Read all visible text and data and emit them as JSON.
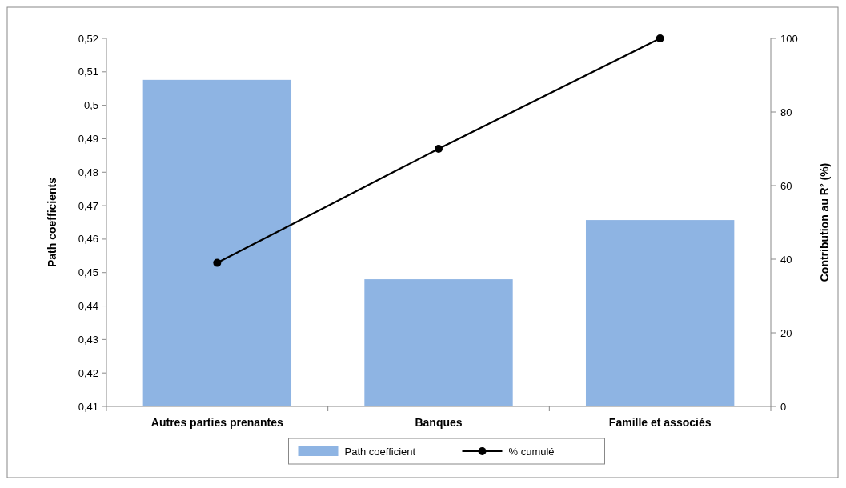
{
  "chart_data": {
    "type": "bar",
    "categories": [
      "Autres parties prenantes",
      "Banques",
      "Famille et associés"
    ],
    "ylabel": "Path coefficients",
    "y2label": "Contribution au R² (%)",
    "ylim": [
      0.41,
      0.52
    ],
    "yticks": [
      {
        "value": 0.41,
        "label": "0,41"
      },
      {
        "value": 0.42,
        "label": "0,42"
      },
      {
        "value": 0.43,
        "label": "0,43"
      },
      {
        "value": 0.44,
        "label": "0,44"
      },
      {
        "value": 0.45,
        "label": "0,45"
      },
      {
        "value": 0.46,
        "label": "0,46"
      },
      {
        "value": 0.47,
        "label": "0,47"
      },
      {
        "value": 0.48,
        "label": "0,48"
      },
      {
        "value": 0.49,
        "label": "0,49"
      },
      {
        "value": 0.5,
        "label": "0,5"
      },
      {
        "value": 0.51,
        "label": "0,51"
      },
      {
        "value": 0.52,
        "label": "0,52"
      }
    ],
    "y2lim": [
      0,
      100
    ],
    "y2ticks": [
      0,
      20,
      40,
      60,
      80,
      100
    ],
    "legend": "bottom",
    "grid": false,
    "series": [
      {
        "name": "Path coefficient",
        "color": "#8eb4e3",
        "values": [
          0.5076,
          0.448,
          0.4657
        ]
      },
      {
        "name": "% cumulé",
        "type": "line",
        "axis": "y2",
        "color": "#000000",
        "marker": "circle",
        "values": [
          39,
          70,
          100
        ]
      }
    ]
  }
}
